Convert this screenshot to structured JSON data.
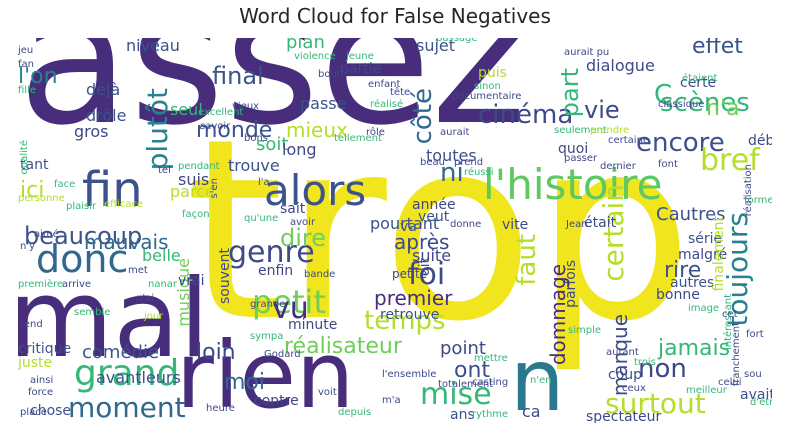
{
  "title": "Word Cloud for False Negatives",
  "colors": {
    "background": "#ffffff",
    "title": "#262626",
    "palette": [
      "#482475",
      "#3e4a89",
      "#31688e",
      "#26828e",
      "#1f9e89",
      "#35b779",
      "#6ece58",
      "#b5de2b",
      "#fde725"
    ]
  },
  "words": [
    {
      "text": "assez",
      "color": "#472d7b"
    },
    {
      "text": "trop",
      "color": "#f1e51d"
    },
    {
      "text": "mal",
      "color": "#472d7b"
    },
    {
      "text": "rien",
      "color": "#472d7b"
    },
    {
      "text": "n",
      "color": "#2a788e"
    },
    {
      "text": "fin",
      "color": "#3b528b"
    },
    {
      "text": "alors",
      "color": "#3b528b"
    },
    {
      "text": "l'histoire",
      "color": "#5ec962"
    },
    {
      "text": "donc",
      "color": "#31688e"
    },
    {
      "text": "grand",
      "color": "#35b779"
    },
    {
      "text": "petit",
      "color": "#6ece58"
    },
    {
      "text": "genre",
      "color": "#3e4989"
    },
    {
      "text": "beaucoup",
      "color": "#3b528b"
    },
    {
      "text": "moment",
      "color": "#31688e"
    },
    {
      "text": "surtout",
      "color": "#b5de2b"
    },
    {
      "text": "toujours",
      "color": "#26828e"
    },
    {
      "text": "encore",
      "color": "#3b528b"
    },
    {
      "text": "cinéma",
      "color": "#3e4989"
    },
    {
      "text": "scènes",
      "color": "#35b779"
    },
    {
      "text": "plutôt",
      "color": "#26828e"
    },
    {
      "text": "certain",
      "color": "#b5de2b"
    },
    {
      "text": "temps",
      "color": "#b5de2b"
    },
    {
      "text": "foi",
      "color": "#3e4989"
    },
    {
      "text": "mise",
      "color": "#35b779"
    },
    {
      "text": "non",
      "color": "#3e4989"
    },
    {
      "text": "bref",
      "color": "#b5de2b"
    },
    {
      "text": "côté",
      "color": "#31688e"
    },
    {
      "text": "dire",
      "color": "#6ece58"
    },
    {
      "text": "vu",
      "color": "#472d7b"
    },
    {
      "text": "vie",
      "color": "#3e4989"
    },
    {
      "text": "effet",
      "color": "#3b528b"
    },
    {
      "text": "C",
      "color": "#35b779"
    },
    {
      "text": "n'a",
      "color": "#6ece58"
    },
    {
      "text": "mieux",
      "color": "#b5de2b"
    },
    {
      "text": "soit",
      "color": "#35b779"
    },
    {
      "text": "final",
      "color": "#3b528b"
    },
    {
      "text": "l'on",
      "color": "#26828e"
    },
    {
      "text": "monde",
      "color": "#3b528b"
    },
    {
      "text": "part",
      "color": "#35b779"
    },
    {
      "text": "ni",
      "color": "#31688e"
    },
    {
      "text": "ici",
      "color": "#b5de2b"
    },
    {
      "text": "mauvais",
      "color": "#31688e"
    },
    {
      "text": "après",
      "color": "#3e4989"
    },
    {
      "text": "Cautres",
      "color": "#3b528b"
    },
    {
      "text": "faut",
      "color": "#b5de2b"
    },
    {
      "text": "réalisateur",
      "color": "#6ece58"
    },
    {
      "text": "premier",
      "color": "#472d7b"
    },
    {
      "text": "loin",
      "color": "#3e4989"
    },
    {
      "text": "comédie",
      "color": "#3b528b"
    },
    {
      "text": "moi",
      "color": "#31688e"
    },
    {
      "text": "ont",
      "color": "#3b528b"
    },
    {
      "text": "jamais",
      "color": "#35b779"
    },
    {
      "text": "rire",
      "color": "#3b528b"
    },
    {
      "text": "manque",
      "color": "#3e4989"
    },
    {
      "text": "musique",
      "color": "#6ece58"
    },
    {
      "text": "dommage",
      "color": "#472d7b"
    },
    {
      "text": "point",
      "color": "#3e4989"
    },
    {
      "text": "avantleurs",
      "color": "#3b528b"
    },
    {
      "text": "sujet",
      "color": "#3b528b"
    },
    {
      "text": "plan",
      "color": "#35b779"
    },
    {
      "text": "niveau",
      "color": "#3b528b"
    },
    {
      "text": "dialogue",
      "color": "#3e4989"
    },
    {
      "text": "déjà",
      "color": "#3b528b"
    },
    {
      "text": "partie",
      "color": "#3e4989"
    },
    {
      "text": "puis",
      "color": "#b5de2b"
    },
    {
      "text": "passe",
      "color": "#3b528b"
    },
    {
      "text": "suite",
      "color": "#3e4989"
    },
    {
      "text": "toutes",
      "color": "#3b528b"
    },
    {
      "text": "trouve",
      "color": "#3b528b"
    },
    {
      "text": "long",
      "color": "#3e4989"
    },
    {
      "text": "seul",
      "color": "#35b779"
    },
    {
      "text": "drôle",
      "color": "#3b528b"
    },
    {
      "text": "gros",
      "color": "#3e4989"
    },
    {
      "text": "tant",
      "color": "#3b528b"
    },
    {
      "text": "pourtant",
      "color": "#3b528b"
    },
    {
      "text": "vite",
      "color": "#3e4989"
    },
    {
      "text": "suis",
      "color": "#3e4989"
    },
    {
      "text": "parce",
      "color": "#b5de2b"
    },
    {
      "text": "sait",
      "color": "#3e4989"
    },
    {
      "text": "veut",
      "color": "#3b528b"
    },
    {
      "text": "année",
      "color": "#3e4989"
    },
    {
      "text": "était",
      "color": "#3e4989"
    },
    {
      "text": "série",
      "color": "#3b528b"
    },
    {
      "text": "malgré",
      "color": "#3e4989"
    },
    {
      "text": "belle",
      "color": "#35b779"
    },
    {
      "text": "enfin",
      "color": "#3e4989"
    },
    {
      "text": "vrai",
      "color": "#3e4989"
    },
    {
      "text": "souvent",
      "color": "#3e4989"
    },
    {
      "text": "minute",
      "color": "#3e4989"
    },
    {
      "text": "retrouve",
      "color": "#3b528b"
    },
    {
      "text": "parfois",
      "color": "#3e4989"
    },
    {
      "text": "bonne",
      "color": "#3e4989"
    },
    {
      "text": "autres",
      "color": "#3b528b"
    },
    {
      "text": "critique",
      "color": "#3b528b"
    },
    {
      "text": "juste",
      "color": "#b5de2b"
    },
    {
      "text": "chose",
      "color": "#3b528b"
    },
    {
      "text": "contre",
      "color": "#3e4989"
    },
    {
      "text": "coup",
      "color": "#3b528b"
    },
    {
      "text": "avait",
      "color": "#3b528b"
    },
    {
      "text": "spectateur",
      "color": "#3e4989"
    },
    {
      "text": "ans",
      "color": "#3b528b"
    },
    {
      "text": "ca",
      "color": "#3e4989"
    },
    {
      "text": "début",
      "color": "#3e4989"
    },
    {
      "text": "certe",
      "color": "#3e4989"
    },
    {
      "text": "quoi",
      "color": "#3e4989"
    },
    {
      "text": "dit",
      "color": "#3e4989"
    },
    {
      "text": "va",
      "color": "#3b528b"
    },
    {
      "text": "petite",
      "color": "#3e4989"
    },
    {
      "text": "finalement",
      "color": "#b5de2b"
    },
    {
      "text": "jeu",
      "color": "#3e4989"
    },
    {
      "text": "fan",
      "color": "#3e4989"
    },
    {
      "text": "fille",
      "color": "#35b779"
    },
    {
      "text": "qualité",
      "color": "#35b779"
    },
    {
      "text": "violence",
      "color": "#35b779"
    },
    {
      "text": "jeune",
      "color": "#35b779"
    },
    {
      "text": "bout",
      "color": "#3e4989"
    },
    {
      "text": "enfant",
      "color": "#3e4989"
    },
    {
      "text": "tête",
      "color": "#3e4989"
    },
    {
      "text": "sinon",
      "color": "#35b779"
    },
    {
      "text": "documentaire",
      "color": "#3e4989"
    },
    {
      "text": "classique",
      "color": "#3e4989"
    },
    {
      "text": "étaient",
      "color": "#35b779"
    },
    {
      "text": "réalisé",
      "color": "#35b779"
    },
    {
      "text": "rôle",
      "color": "#3e4989"
    },
    {
      "text": "vieux",
      "color": "#3e4989"
    },
    {
      "text": "excellent",
      "color": "#35b779"
    },
    {
      "text": "savoir",
      "color": "#3e4989"
    },
    {
      "text": "bons",
      "color": "#3e4989"
    },
    {
      "text": "aurait",
      "color": "#3e4989"
    },
    {
      "text": "seulement",
      "color": "#35b779"
    },
    {
      "text": "prendre",
      "color": "#b5de2b"
    },
    {
      "text": "certaine",
      "color": "#3e4989"
    },
    {
      "text": "passer",
      "color": "#3e4989"
    },
    {
      "text": "dernier",
      "color": "#3e4989"
    },
    {
      "text": "font",
      "color": "#3e4989"
    },
    {
      "text": "réalisation",
      "color": "#3e4989"
    },
    {
      "text": "beau",
      "color": "#3e4989"
    },
    {
      "text": "prend",
      "color": "#3e4989"
    },
    {
      "text": "réussi",
      "color": "#35b779"
    },
    {
      "text": "tellement",
      "color": "#35b779"
    },
    {
      "text": "pendant",
      "color": "#35b779"
    },
    {
      "text": "face",
      "color": "#35b779"
    },
    {
      "text": "plaisir",
      "color": "#35b779"
    },
    {
      "text": "efficace",
      "color": "#b5de2b"
    },
    {
      "text": "personne",
      "color": "#b5de2b"
    },
    {
      "text": "qu'une",
      "color": "#35b779"
    },
    {
      "text": "avoir",
      "color": "#3e4989"
    },
    {
      "text": "façon",
      "color": "#35b779"
    },
    {
      "text": "donne",
      "color": "#3e4989"
    },
    {
      "text": "Jean",
      "color": "#3e4989"
    },
    {
      "text": "met",
      "color": "#3e4989"
    },
    {
      "text": "bande",
      "color": "#3e4989"
    },
    {
      "text": "aimé",
      "color": "#3e4989"
    },
    {
      "text": "n'y",
      "color": "#3e4989"
    },
    {
      "text": "première",
      "color": "#35b779"
    },
    {
      "text": "arrive",
      "color": "#3e4989"
    },
    {
      "text": "nanar",
      "color": "#35b779"
    },
    {
      "text": "n'ai",
      "color": "#3e4989"
    },
    {
      "text": "semble",
      "color": "#35b779"
    },
    {
      "text": "jour",
      "color": "#b5de2b"
    },
    {
      "text": "grande",
      "color": "#3e4989"
    },
    {
      "text": "rend",
      "color": "#3e4989"
    },
    {
      "text": "intéressant",
      "color": "#35b779"
    },
    {
      "text": "forme",
      "color": "#35b779"
    },
    {
      "text": "image",
      "color": "#35b779"
    },
    {
      "text": "cet",
      "color": "#3e4989"
    },
    {
      "text": "franchement",
      "color": "#3e4989"
    },
    {
      "text": "fort",
      "color": "#3e4989"
    },
    {
      "text": "simple",
      "color": "#35b779"
    },
    {
      "text": "autant",
      "color": "#3e4989"
    },
    {
      "text": "sympa",
      "color": "#35b779"
    },
    {
      "text": "Godard",
      "color": "#3e4989"
    },
    {
      "text": "mettre",
      "color": "#35b779"
    },
    {
      "text": "totalement",
      "color": "#3e4989"
    },
    {
      "text": "l'ensemble",
      "color": "#3e4989"
    },
    {
      "text": "casting",
      "color": "#3e4989"
    },
    {
      "text": "n'en",
      "color": "#35b779"
    },
    {
      "text": "trois",
      "color": "#35b779"
    },
    {
      "text": "celui",
      "color": "#3e4989"
    },
    {
      "text": "meilleur",
      "color": "#35b779"
    },
    {
      "text": "sou",
      "color": "#3e4989"
    },
    {
      "text": "d'être",
      "color": "#35b779"
    },
    {
      "text": "ainsi",
      "color": "#3e4989"
    },
    {
      "text": "force",
      "color": "#3e4989"
    },
    {
      "text": "place",
      "color": "#3e4989"
    },
    {
      "text": "heure",
      "color": "#3e4989"
    },
    {
      "text": "voit",
      "color": "#3e4989"
    },
    {
      "text": "m'a",
      "color": "#3e4989"
    },
    {
      "text": "depuis",
      "color": "#35b779"
    },
    {
      "text": "rythme",
      "color": "#35b779"
    },
    {
      "text": "trouvé",
      "color": "#35b779"
    },
    {
      "text": "aurait pu",
      "color": "#3e4989"
    },
    {
      "text": "passage",
      "color": "#35b779"
    },
    {
      "text": "ceux",
      "color": "#3e4989"
    },
    {
      "text": "s'en",
      "color": "#3e4989"
    },
    {
      "text": "l'a",
      "color": "#3e4989"
    },
    {
      "text": "tel",
      "color": "#3e4989"
    }
  ]
}
